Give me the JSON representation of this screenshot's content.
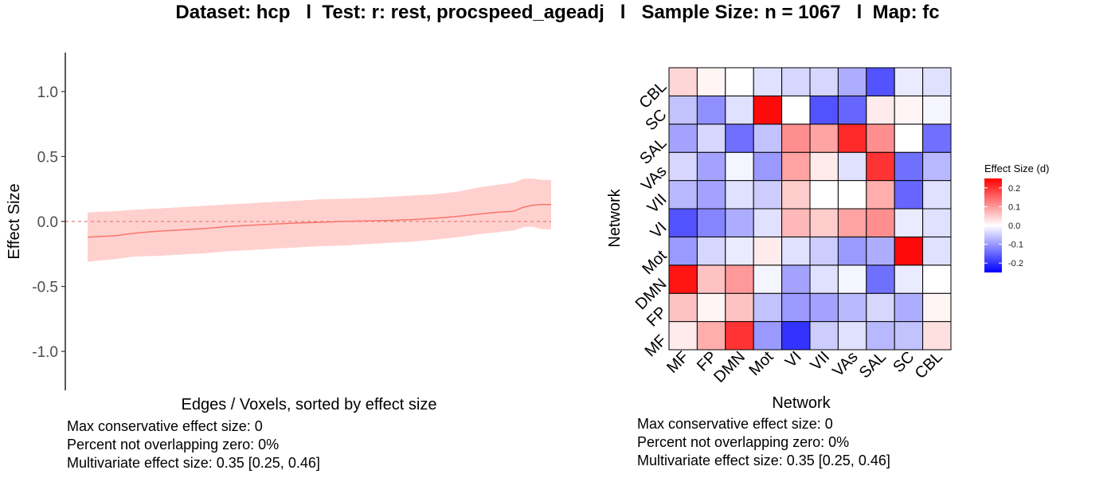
{
  "title": "Dataset: hcp   l  Test: r: rest, procspeed_ageadj   l   Sample Size: n = 1067   l  Map: fc",
  "left_stats": [
    "Max conservative effect size: 0",
    "Percent not overlapping zero: 0%",
    "Multivariate effect size: 0.35 [0.25, 0.46]"
  ],
  "right_stats": [
    "Max conservative effect size: 0",
    "Percent not overlapping zero: 0%",
    "Multivariate effect size: 0.35 [0.25, 0.46]"
  ],
  "colors": {
    "line": "#F8766D",
    "ribbon": "#FFD1CE",
    "zero_line": "#E0807A",
    "heat_low": "#0000FF",
    "heat_mid": "#FFFFFF",
    "heat_high": "#FF0000"
  },
  "chart_data": [
    {
      "type": "line",
      "xlabel": "Edges / Voxels, sorted by effect size",
      "ylabel": "Effect Size",
      "ylim": [
        -1.3,
        1.3
      ],
      "yticks": [
        -1.0,
        -0.5,
        0.0,
        0.5,
        1.0
      ],
      "ytick_labels": [
        "-1.0",
        "-0.5",
        "0.0",
        "0.5",
        "1.0"
      ],
      "hline": 0,
      "x": [
        0,
        0.03,
        0.06,
        0.1,
        0.15,
        0.2,
        0.25,
        0.3,
        0.35,
        0.4,
        0.45,
        0.5,
        0.55,
        0.6,
        0.65,
        0.7,
        0.75,
        0.8,
        0.84,
        0.88,
        0.9,
        0.92,
        0.94,
        0.96,
        0.98,
        1.0
      ],
      "y": [
        -0.12,
        -0.115,
        -0.11,
        -0.09,
        -0.075,
        -0.065,
        -0.055,
        -0.04,
        -0.03,
        -0.02,
        -0.012,
        -0.006,
        0.0,
        0.004,
        0.008,
        0.015,
        0.025,
        0.04,
        0.055,
        0.07,
        0.075,
        0.08,
        0.11,
        0.125,
        0.13,
        0.13
      ],
      "lower": [
        -0.31,
        -0.3,
        -0.29,
        -0.27,
        -0.265,
        -0.255,
        -0.245,
        -0.23,
        -0.22,
        -0.21,
        -0.2,
        -0.19,
        -0.185,
        -0.175,
        -0.165,
        -0.155,
        -0.14,
        -0.12,
        -0.1,
        -0.085,
        -0.075,
        -0.07,
        -0.045,
        -0.04,
        -0.06,
        -0.06
      ],
      "upper": [
        0.07,
        0.075,
        0.08,
        0.09,
        0.1,
        0.11,
        0.12,
        0.13,
        0.14,
        0.15,
        0.16,
        0.17,
        0.175,
        0.18,
        0.19,
        0.2,
        0.21,
        0.23,
        0.26,
        0.28,
        0.29,
        0.3,
        0.33,
        0.33,
        0.32,
        0.32
      ]
    },
    {
      "type": "heatmap",
      "xlabel": "Network",
      "ylabel": "Network",
      "x_categories": [
        "MF",
        "FP",
        "DMN",
        "Mot",
        "VI",
        "VII",
        "VAs",
        "SAL",
        "SC",
        "CBL"
      ],
      "y_categories": [
        "MF",
        "FP",
        "DMN",
        "Mot",
        "VI",
        "VII",
        "VAs",
        "SAL",
        "SC",
        "CBL"
      ],
      "legend_title": "Effect Size (d)",
      "color_range": [
        -0.25,
        0.25
      ],
      "legend_ticks": [
        0.2,
        0.1,
        0.0,
        -0.1,
        -0.2
      ],
      "legend_tick_labels": [
        "0.2",
        "0.1",
        "0.0",
        "-0.1",
        "-0.2"
      ],
      "values": [
        [
          0.02,
          0.08,
          0.2,
          -0.1,
          -0.2,
          -0.05,
          -0.03,
          -0.07,
          -0.06,
          0.03
        ],
        [
          0.06,
          0.01,
          0.06,
          -0.06,
          -0.1,
          -0.09,
          -0.07,
          -0.04,
          -0.08,
          0.01
        ],
        [
          0.23,
          0.06,
          0.1,
          -0.01,
          -0.09,
          -0.03,
          -0.01,
          -0.14,
          -0.02,
          0.0
        ],
        [
          -0.1,
          -0.04,
          -0.02,
          0.02,
          -0.03,
          -0.05,
          -0.1,
          -0.08,
          0.24,
          -0.03
        ],
        [
          -0.17,
          -0.12,
          -0.08,
          -0.03,
          0.07,
          0.05,
          0.09,
          0.11,
          -0.02,
          -0.03
        ],
        [
          -0.07,
          -0.09,
          -0.03,
          -0.05,
          0.05,
          0.0,
          0.0,
          0.08,
          -0.15,
          -0.03
        ],
        [
          -0.04,
          -0.09,
          -0.01,
          -0.1,
          0.09,
          0.02,
          -0.03,
          0.2,
          -0.14,
          -0.07
        ],
        [
          -0.09,
          -0.04,
          -0.14,
          -0.06,
          0.11,
          0.09,
          0.21,
          0.11,
          0.0,
          -0.14
        ],
        [
          -0.06,
          -0.11,
          -0.03,
          0.24,
          0.0,
          -0.17,
          -0.15,
          0.02,
          0.01,
          -0.01
        ],
        [
          0.04,
          0.01,
          0.0,
          -0.03,
          -0.04,
          -0.04,
          -0.08,
          -0.17,
          -0.02,
          -0.03
        ]
      ]
    }
  ]
}
